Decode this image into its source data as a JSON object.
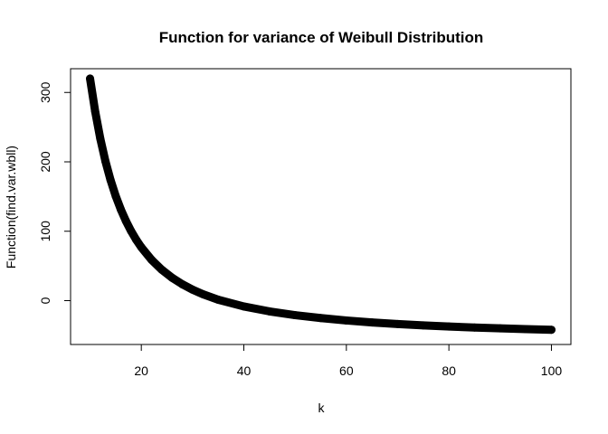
{
  "chart_data": {
    "type": "scatter",
    "title": "Function for variance of Weibull Distribution",
    "xlabel": "k",
    "ylabel": "Function(find.var.wbll)",
    "xlim": [
      6.2,
      103.8
    ],
    "ylim": [
      -63.2,
      334.2
    ],
    "x_ticks": [
      20,
      40,
      60,
      80,
      100
    ],
    "y_ticks": [
      0,
      100,
      200,
      300
    ],
    "grid": false,
    "legend": "none",
    "marker_color": "#000000",
    "series": [
      {
        "x": [
          10,
          11,
          12,
          13,
          14,
          15,
          16,
          17,
          18,
          19,
          20,
          22,
          24,
          26,
          28,
          30,
          32,
          35,
          40,
          45,
          50,
          55,
          60,
          65,
          70,
          75,
          80,
          85,
          90,
          95,
          100
        ],
        "y": [
          320,
          272.6,
          233.4,
          200.9,
          173.7,
          150.8,
          131.4,
          114.7,
          100.3,
          87.8,
          76.9,
          58.8,
          44.5,
          33.0,
          23.6,
          15.8,
          9.3,
          1.3,
          -8.4,
          -15.5,
          -20.9,
          -25.1,
          -28.6,
          -31.4,
          -33.7,
          -35.6,
          -37.3,
          -38.7,
          -39.9,
          -41.0,
          -42.0
        ]
      }
    ]
  }
}
